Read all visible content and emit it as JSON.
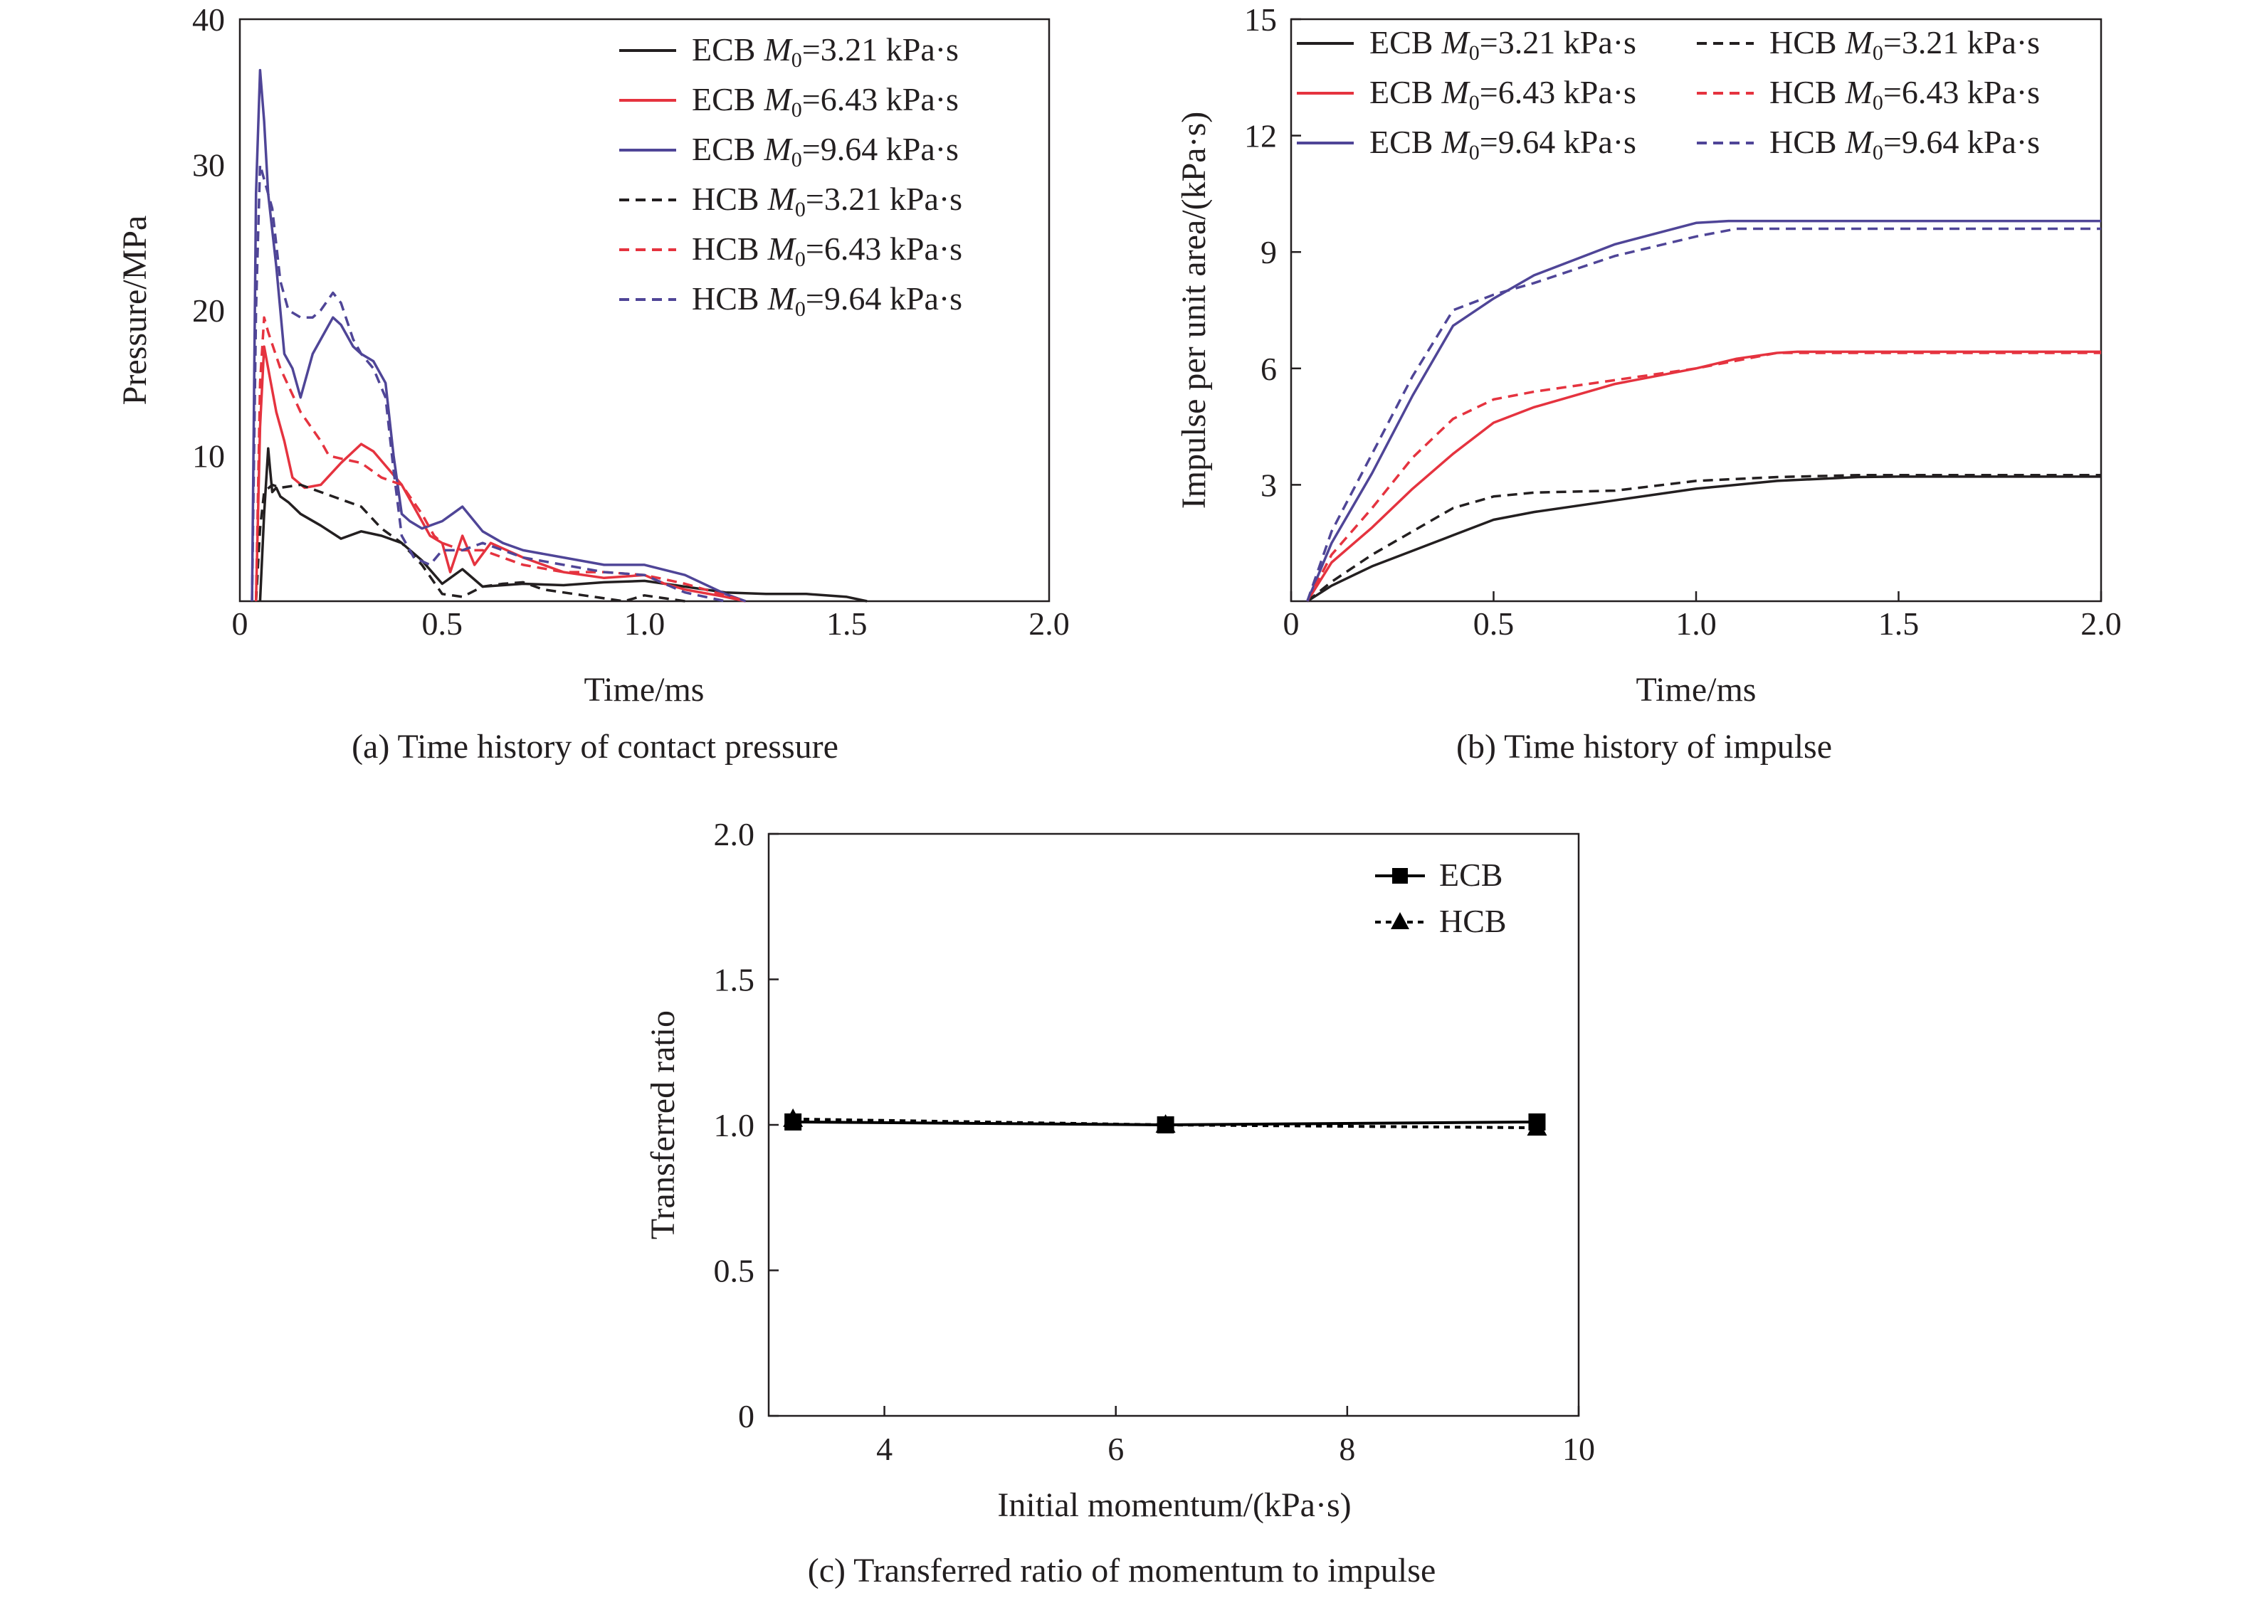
{
  "chart_data": [
    {
      "id": "a",
      "type": "line",
      "caption": "(a) Time history of contact pressure",
      "xlabel": "Time/ms",
      "ylabel": "Pressure/MPa",
      "xlim": [
        0,
        2.0
      ],
      "ylim": [
        0,
        40
      ],
      "xticks": [
        "0",
        "0.5",
        "1.0",
        "1.5",
        "2.0"
      ],
      "yticks": [
        "10",
        "20",
        "30",
        "40"
      ],
      "grid": false,
      "legend_position": "top-right",
      "series": [
        {
          "name": "ECB",
          "m0": "3.21 kPa·s",
          "color": "#231f20",
          "dash": "solid",
          "x": [
            0.05,
            0.06,
            0.07,
            0.075,
            0.08,
            0.09,
            0.1,
            0.12,
            0.15,
            0.2,
            0.25,
            0.3,
            0.35,
            0.4,
            0.45,
            0.5,
            0.52,
            0.55,
            0.6,
            0.7,
            0.8,
            0.9,
            1.0,
            1.1,
            1.2,
            1.3,
            1.4,
            1.5,
            1.55
          ],
          "y": [
            0,
            6,
            10.5,
            9,
            7.5,
            7.8,
            7.2,
            6.8,
            6.0,
            5.2,
            4.3,
            4.8,
            4.5,
            4.0,
            2.8,
            1.2,
            1.6,
            2.2,
            1.0,
            1.2,
            1.1,
            1.3,
            1.4,
            1.0,
            0.6,
            0.5,
            0.5,
            0.3,
            0
          ]
        },
        {
          "name": "ECB",
          "m0": "6.43 kPa·s",
          "color": "#e5333f",
          "dash": "solid",
          "x": [
            0.04,
            0.05,
            0.06,
            0.07,
            0.09,
            0.11,
            0.13,
            0.16,
            0.2,
            0.25,
            0.3,
            0.33,
            0.37,
            0.4,
            0.43,
            0.47,
            0.5,
            0.52,
            0.55,
            0.58,
            0.62,
            0.7,
            0.8,
            0.9,
            1.0,
            1.05,
            1.1,
            1.2,
            1.25
          ],
          "y": [
            0,
            12,
            17.5,
            16,
            13,
            11,
            8.5,
            7.8,
            8.0,
            9.5,
            10.8,
            10.3,
            9.0,
            8.0,
            6.5,
            4.5,
            4.0,
            2.0,
            4.5,
            2.5,
            4.0,
            3.0,
            2.0,
            1.6,
            1.8,
            1.2,
            0.8,
            0.3,
            0
          ]
        },
        {
          "name": "ECB",
          "m0": "9.64 kPa·s",
          "color": "#4f4597",
          "dash": "solid",
          "x": [
            0.03,
            0.04,
            0.05,
            0.06,
            0.07,
            0.09,
            0.11,
            0.13,
            0.15,
            0.18,
            0.2,
            0.23,
            0.25,
            0.28,
            0.3,
            0.33,
            0.36,
            0.38,
            0.4,
            0.42,
            0.45,
            0.5,
            0.55,
            0.6,
            0.65,
            0.7,
            0.8,
            0.9,
            1.0,
            1.1,
            1.2,
            1.25
          ],
          "y": [
            0,
            28,
            36.5,
            33,
            28,
            23,
            17,
            16,
            14,
            17,
            18,
            19.5,
            19,
            17.5,
            17,
            16.5,
            15,
            10,
            6,
            5.5,
            5.0,
            5.5,
            6.5,
            4.8,
            4.0,
            3.5,
            3.0,
            2.5,
            2.5,
            1.8,
            0.5,
            0
          ]
        },
        {
          "name": "HCB",
          "m0": "3.21 kPa·s",
          "color": "#231f20",
          "dash": "dashed",
          "x": [
            0.04,
            0.05,
            0.06,
            0.08,
            0.1,
            0.15,
            0.2,
            0.25,
            0.3,
            0.35,
            0.4,
            0.45,
            0.5,
            0.55,
            0.6,
            0.65,
            0.7,
            0.75,
            0.8,
            0.85,
            0.9,
            0.95,
            1.0,
            1.05,
            1.1
          ],
          "y": [
            0,
            5,
            7.5,
            8.0,
            7.8,
            8.0,
            7.5,
            7.0,
            6.5,
            5.0,
            4.0,
            2.5,
            0.5,
            0.3,
            1.0,
            1.2,
            1.3,
            0.8,
            0.6,
            0.4,
            0.2,
            0.0,
            0.4,
            0.2,
            0
          ]
        },
        {
          "name": "HCB",
          "m0": "6.43 kPa·s",
          "color": "#e5333f",
          "dash": "dashed",
          "x": [
            0.04,
            0.05,
            0.06,
            0.07,
            0.1,
            0.15,
            0.2,
            0.22,
            0.25,
            0.3,
            0.35,
            0.4,
            0.45,
            0.48,
            0.5,
            0.55,
            0.6,
            0.7,
            0.8,
            0.9,
            1.0,
            1.05,
            1.1,
            1.2,
            1.25
          ],
          "y": [
            0,
            15,
            19.5,
            18.5,
            16,
            13,
            11,
            10,
            9.8,
            9.5,
            8.5,
            8.0,
            6.0,
            4.5,
            4.0,
            3.5,
            3.5,
            2.5,
            2.0,
            2.0,
            1.8,
            1.5,
            1.2,
            0.4,
            0
          ]
        },
        {
          "name": "HCB",
          "m0": "9.64 kPa·s",
          "color": "#4f4597",
          "dash": "dashed",
          "x": [
            0.03,
            0.04,
            0.05,
            0.06,
            0.08,
            0.1,
            0.12,
            0.15,
            0.18,
            0.2,
            0.23,
            0.25,
            0.28,
            0.3,
            0.33,
            0.36,
            0.38,
            0.4,
            0.43,
            0.47,
            0.5,
            0.55,
            0.6,
            0.7,
            0.8,
            0.9,
            1.0,
            1.05,
            1.1,
            1.2
          ],
          "y": [
            0,
            20,
            30,
            29,
            27,
            22,
            20,
            19.5,
            19.5,
            20,
            21.2,
            20.5,
            18,
            17,
            16,
            14,
            9,
            4.5,
            3,
            2.5,
            3.5,
            3.5,
            4.0,
            3.0,
            2.5,
            2.0,
            1.8,
            1.2,
            0.6,
            0
          ]
        }
      ]
    },
    {
      "id": "b",
      "type": "line",
      "caption": "(b) Time history of impulse",
      "xlabel": "Time/ms",
      "ylabel": "Impulse per unit area/(kPa·s)",
      "xlim": [
        0,
        2.0
      ],
      "ylim": [
        0,
        15
      ],
      "xticks": [
        "0",
        "0.5",
        "1.0",
        "1.5",
        "2.0"
      ],
      "yticks": [
        "3",
        "6",
        "9",
        "12",
        "15"
      ],
      "grid": false,
      "legend_position": "top",
      "series": [
        {
          "name": "ECB",
          "m0": "3.21 kPa·s",
          "color": "#231f20",
          "dash": "solid",
          "x": [
            0.04,
            0.1,
            0.2,
            0.3,
            0.4,
            0.5,
            0.6,
            0.8,
            1.0,
            1.2,
            1.4,
            1.5,
            2.0
          ],
          "y": [
            0,
            0.4,
            0.9,
            1.3,
            1.7,
            2.1,
            2.3,
            2.6,
            2.9,
            3.1,
            3.2,
            3.21,
            3.21
          ]
        },
        {
          "name": "ECB",
          "m0": "6.43 kPa·s",
          "color": "#e5333f",
          "dash": "solid",
          "x": [
            0.04,
            0.1,
            0.2,
            0.3,
            0.4,
            0.5,
            0.6,
            0.8,
            1.0,
            1.1,
            1.2,
            1.25,
            2.0
          ],
          "y": [
            0,
            1.0,
            1.9,
            2.9,
            3.8,
            4.6,
            5.0,
            5.6,
            6.0,
            6.25,
            6.4,
            6.43,
            6.43
          ]
        },
        {
          "name": "ECB",
          "m0": "9.64 kPa·s",
          "color": "#4f4597",
          "dash": "solid",
          "x": [
            0.04,
            0.1,
            0.2,
            0.3,
            0.4,
            0.5,
            0.6,
            0.8,
            1.0,
            1.08,
            2.0
          ],
          "y": [
            0,
            1.5,
            3.3,
            5.3,
            7.1,
            7.8,
            8.4,
            9.2,
            9.75,
            9.8,
            9.8
          ]
        },
        {
          "name": "HCB",
          "m0": "3.21 kPa·s",
          "color": "#231f20",
          "dash": "dashed",
          "x": [
            0.04,
            0.1,
            0.2,
            0.3,
            0.4,
            0.5,
            0.6,
            0.8,
            1.0,
            1.2,
            1.4,
            2.0
          ],
          "y": [
            0,
            0.5,
            1.2,
            1.8,
            2.4,
            2.7,
            2.8,
            2.85,
            3.1,
            3.2,
            3.25,
            3.25
          ]
        },
        {
          "name": "HCB",
          "m0": "6.43 kPa·s",
          "color": "#e5333f",
          "dash": "dashed",
          "x": [
            0.04,
            0.1,
            0.2,
            0.3,
            0.4,
            0.5,
            0.6,
            0.8,
            1.0,
            1.1,
            1.2,
            2.0
          ],
          "y": [
            0,
            1.2,
            2.4,
            3.7,
            4.7,
            5.2,
            5.4,
            5.7,
            6.0,
            6.2,
            6.4,
            6.4
          ]
        },
        {
          "name": "HCB",
          "m0": "9.64 kPa·s",
          "color": "#4f4597",
          "dash": "dashed",
          "x": [
            0.04,
            0.1,
            0.2,
            0.3,
            0.4,
            0.5,
            0.6,
            0.8,
            1.0,
            1.1,
            2.0
          ],
          "y": [
            0,
            1.8,
            3.8,
            5.8,
            7.5,
            7.9,
            8.2,
            8.9,
            9.4,
            9.6,
            9.6
          ]
        }
      ]
    },
    {
      "id": "c",
      "type": "line",
      "caption": "(c) Transferred ratio of momentum to impulse",
      "xlabel": "Initial momentum/(kPa·s)",
      "ylabel": "Transferred ratio",
      "xlim": [
        3,
        10
      ],
      "ylim": [
        0,
        2.0
      ],
      "xticks": [
        "4",
        "6",
        "8",
        "10"
      ],
      "yticks": [
        "0",
        "0.5",
        "1.0",
        "1.5",
        "2.0"
      ],
      "grid": false,
      "legend_position": "top-right",
      "series": [
        {
          "name": "ECB",
          "marker": "square",
          "dash": "solid",
          "color": "#000000",
          "x": [
            3.21,
            6.43,
            9.64
          ],
          "y": [
            1.01,
            1.0,
            1.01
          ]
        },
        {
          "name": "HCB",
          "marker": "triangle",
          "dash": "dashed",
          "color": "#000000",
          "x": [
            3.21,
            6.43,
            9.64
          ],
          "y": [
            1.02,
            1.0,
            0.99
          ]
        }
      ]
    }
  ]
}
